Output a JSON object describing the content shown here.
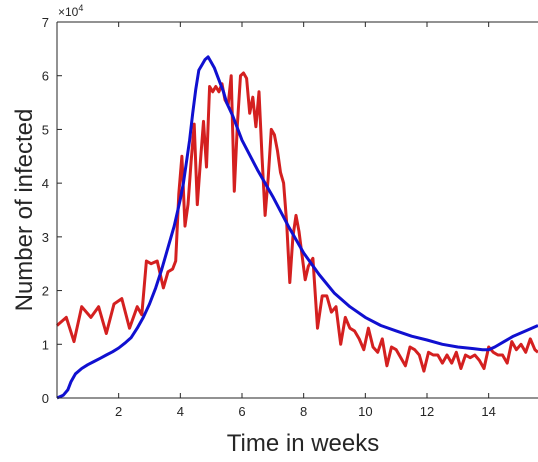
{
  "chart_data": {
    "type": "line",
    "title": "",
    "xlabel": "Time in weeks",
    "ylabel": "Number of infected",
    "y_exponent_label": "×10",
    "y_exponent_power": "4",
    "xlim": [
      0,
      15.6
    ],
    "ylim": [
      0,
      7
    ],
    "xticks": [
      2,
      4,
      6,
      8,
      10,
      12,
      14
    ],
    "xtick_labels": [
      "2",
      "4",
      "6",
      "8",
      "10",
      "12",
      "14"
    ],
    "yticks": [
      0,
      1,
      2,
      3,
      4,
      5,
      6,
      7
    ],
    "ytick_labels": [
      "0",
      "1",
      "2",
      "3",
      "4",
      "5",
      "6",
      "7"
    ],
    "grid": false,
    "colors": {
      "red_series": "#d42020",
      "blue_series": "#1010d0",
      "axes": "#262626"
    },
    "series": [
      {
        "color": "#d42020",
        "x": [
          0,
          0.3,
          0.55,
          0.8,
          1.1,
          1.35,
          1.6,
          1.85,
          2.1,
          2.35,
          2.6,
          2.75,
          2.9,
          3.05,
          3.25,
          3.45,
          3.6,
          3.75,
          3.85,
          3.95,
          4.05,
          4.15,
          4.25,
          4.35,
          4.45,
          4.55,
          4.65,
          4.75,
          4.85,
          4.95,
          5.05,
          5.15,
          5.25,
          5.35,
          5.45,
          5.55,
          5.65,
          5.75,
          5.85,
          5.95,
          6.05,
          6.15,
          6.25,
          6.35,
          6.45,
          6.55,
          6.65,
          6.75,
          6.85,
          6.95,
          7.05,
          7.15,
          7.25,
          7.35,
          7.45,
          7.55,
          7.65,
          7.75,
          7.85,
          7.95,
          8.05,
          8.15,
          8.3,
          8.45,
          8.6,
          8.75,
          8.9,
          9.05,
          9.2,
          9.35,
          9.5,
          9.65,
          9.8,
          9.95,
          10.1,
          10.25,
          10.4,
          10.55,
          10.7,
          10.85,
          11.0,
          11.15,
          11.3,
          11.45,
          11.6,
          11.75,
          11.9,
          12.05,
          12.2,
          12.35,
          12.5,
          12.65,
          12.8,
          12.95,
          13.1,
          13.25,
          13.4,
          13.55,
          13.7,
          13.85,
          14.0,
          14.15,
          14.3,
          14.45,
          14.6,
          14.75,
          14.9,
          15.05,
          15.2,
          15.35,
          15.5,
          15.6
        ],
        "y": [
          1.35,
          1.5,
          1.05,
          1.7,
          1.5,
          1.7,
          1.2,
          1.75,
          1.85,
          1.3,
          1.7,
          1.55,
          2.55,
          2.5,
          2.55,
          2.05,
          2.35,
          2.4,
          2.55,
          3.8,
          4.5,
          3.2,
          3.6,
          4.4,
          5.1,
          3.6,
          4.4,
          5.15,
          4.3,
          5.8,
          5.7,
          5.8,
          5.7,
          5.85,
          5.55,
          5.45,
          6.0,
          3.85,
          5.1,
          6.0,
          6.05,
          5.95,
          5.3,
          5.6,
          5.05,
          5.7,
          4.5,
          3.4,
          4.1,
          5.0,
          4.9,
          4.6,
          4.2,
          4.0,
          3.25,
          2.15,
          3.0,
          3.4,
          3.1,
          2.65,
          2.2,
          2.45,
          2.6,
          1.3,
          1.9,
          1.9,
          1.6,
          1.7,
          1.0,
          1.5,
          1.3,
          1.25,
          1.1,
          0.9,
          1.3,
          0.95,
          0.85,
          1.1,
          0.6,
          0.95,
          0.9,
          0.75,
          0.6,
          0.95,
          0.9,
          0.8,
          0.5,
          0.85,
          0.8,
          0.8,
          0.65,
          0.8,
          0.65,
          0.85,
          0.55,
          0.8,
          0.75,
          0.8,
          0.7,
          0.55,
          0.95,
          0.85,
          0.8,
          0.8,
          0.65,
          1.05,
          0.9,
          1.0,
          0.85,
          1.1,
          0.9,
          0.85
        ]
      },
      {
        "color": "#1010d0",
        "x": [
          0.0,
          0.2,
          0.35,
          0.45,
          0.6,
          0.8,
          1.0,
          1.2,
          1.4,
          1.6,
          1.8,
          2.0,
          2.2,
          2.4,
          2.6,
          2.8,
          3.0,
          3.2,
          3.4,
          3.6,
          3.8,
          4.0,
          4.1,
          4.2,
          4.3,
          4.4,
          4.5,
          4.6,
          4.7,
          4.8,
          4.9,
          5.0,
          5.1,
          5.2,
          5.3,
          5.4,
          5.5,
          5.7,
          6.0,
          6.5,
          7.0,
          7.5,
          8.0,
          8.5,
          9.0,
          9.5,
          10.0,
          10.5,
          11.0,
          11.5,
          12.0,
          12.5,
          13.0,
          13.5,
          13.8,
          14.0,
          14.2,
          14.5,
          14.8,
          15.2,
          15.6
        ],
        "y": [
          0.0,
          0.05,
          0.15,
          0.3,
          0.45,
          0.55,
          0.62,
          0.68,
          0.74,
          0.8,
          0.86,
          0.93,
          1.02,
          1.12,
          1.3,
          1.5,
          1.75,
          2.05,
          2.4,
          2.8,
          3.2,
          3.7,
          4.0,
          4.4,
          4.8,
          5.3,
          5.75,
          6.1,
          6.2,
          6.3,
          6.35,
          6.25,
          6.15,
          6.0,
          5.85,
          5.7,
          5.5,
          5.25,
          4.8,
          4.25,
          3.75,
          3.2,
          2.7,
          2.3,
          1.95,
          1.7,
          1.5,
          1.35,
          1.25,
          1.15,
          1.08,
          1.0,
          0.95,
          0.92,
          0.9,
          0.9,
          0.95,
          1.05,
          1.15,
          1.25,
          1.35
        ]
      }
    ]
  }
}
